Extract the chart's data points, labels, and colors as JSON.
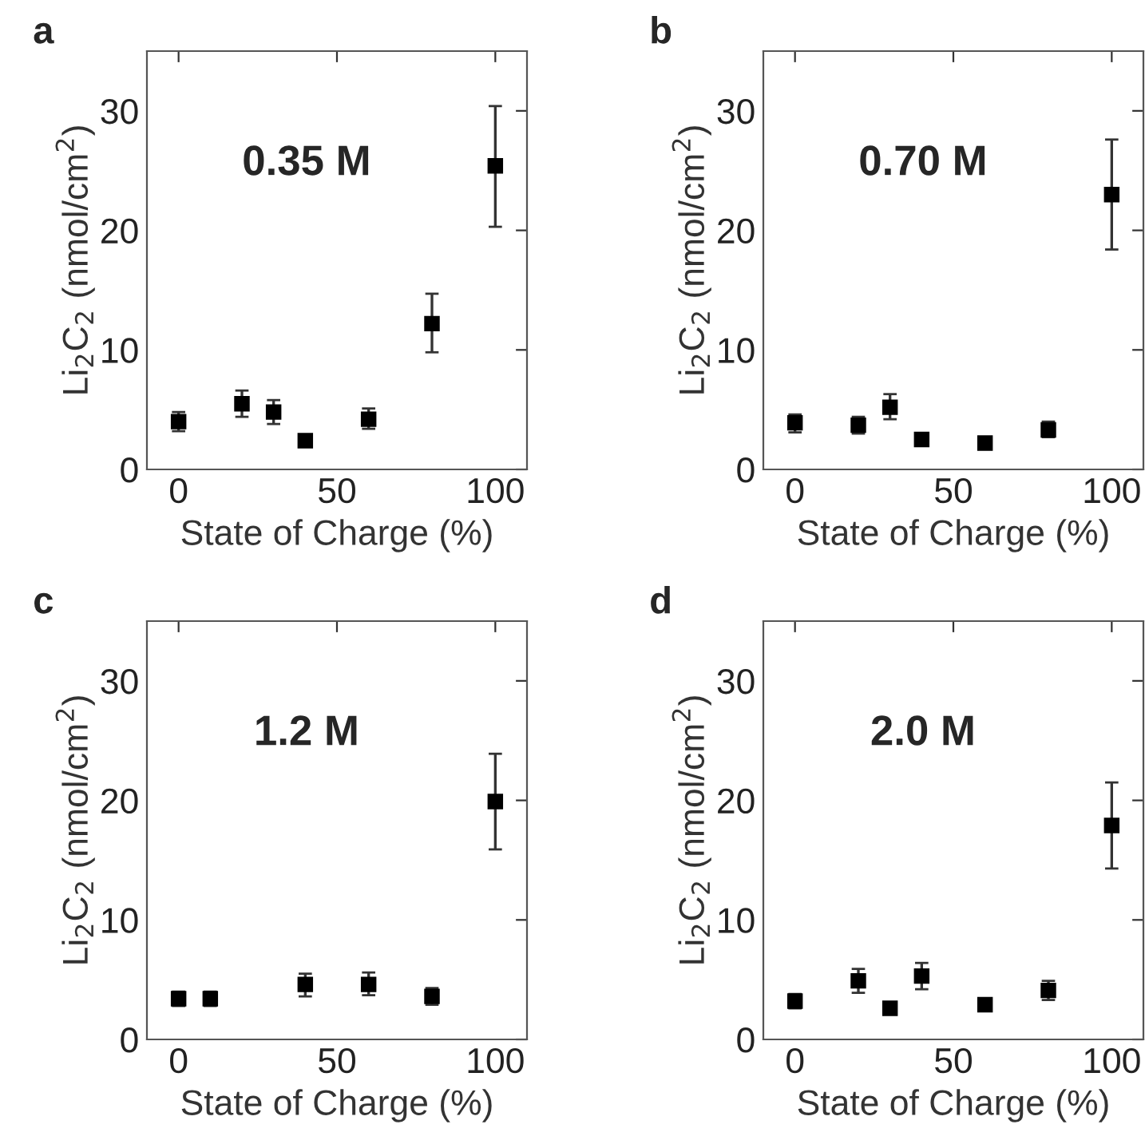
{
  "chart_data": [
    {
      "type": "scatter",
      "title": "a",
      "xlabel": "State of Charge (%)",
      "ylabel": "Li$_{2}$C$_{2}$ (nmol/cm$^{2}$)",
      "annotations": [
        "0.35 M"
      ],
      "x": [
        0,
        20,
        30,
        40,
        60,
        80,
        100
      ],
      "values": [
        4.0,
        5.5,
        4.8,
        2.4,
        4.2,
        12.2,
        25.4
      ],
      "errors": [
        [
          3.2,
          4.8
        ],
        [
          4.4,
          6.6
        ],
        [
          3.8,
          5.8
        ],
        null,
        [
          3.4,
          5.1
        ],
        [
          9.8,
          14.7
        ],
        [
          20.3,
          30.4
        ]
      ],
      "color": "#000000",
      "marker": "square",
      "xlim": [
        -10,
        110
      ],
      "ylim": [
        0,
        35
      ],
      "xticks": [
        0,
        50,
        100
      ],
      "yticks": [
        0,
        10,
        20,
        30
      ],
      "grid": false,
      "legend": false
    },
    {
      "type": "scatter",
      "title": "b",
      "xlabel": "State of Charge (%)",
      "ylabel": "Li$_{2}$C$_{2}$ (nmol/cm$^{2}$)",
      "annotations": [
        "0.70 M"
      ],
      "x": [
        0,
        20,
        30,
        40,
        60,
        80,
        100
      ],
      "values": [
        3.9,
        3.7,
        5.2,
        2.5,
        2.2,
        3.3,
        23.0
      ],
      "errors": [
        [
          3.1,
          4.6
        ],
        [
          3.0,
          4.4
        ],
        [
          4.2,
          6.3
        ],
        null,
        null,
        [
          2.7,
          4.0
        ],
        [
          18.4,
          27.6
        ]
      ],
      "color": "#000000",
      "marker": "square",
      "xlim": [
        -10,
        110
      ],
      "ylim": [
        0,
        35
      ],
      "xticks": [
        0,
        50,
        100
      ],
      "yticks": [
        0,
        10,
        20,
        30
      ],
      "grid": false,
      "legend": false
    },
    {
      "type": "scatter",
      "title": "c",
      "xlabel": "State of Charge (%)",
      "ylabel": "Li$_{2}$C$_{2}$ (nmol/cm$^{2}$)",
      "annotations": [
        "1.2 M"
      ],
      "x": [
        0,
        10,
        40,
        60,
        80,
        100
      ],
      "values": [
        3.4,
        3.4,
        4.6,
        4.6,
        3.6,
        19.9
      ],
      "errors": [
        [
          2.8,
          4.0
        ],
        [
          2.8,
          4.0
        ],
        [
          3.6,
          5.5
        ],
        [
          3.7,
          5.6
        ],
        [
          2.9,
          4.3
        ],
        [
          15.9,
          23.9
        ]
      ],
      "color": "#000000",
      "marker": "square",
      "xlim": [
        -10,
        110
      ],
      "ylim": [
        0,
        35
      ],
      "xticks": [
        0,
        50,
        100
      ],
      "yticks": [
        0,
        10,
        20,
        30
      ],
      "grid": false,
      "legend": false
    },
    {
      "type": "scatter",
      "title": "d",
      "xlabel": "State of Charge (%)",
      "ylabel": "Li$_{2}$C$_{2}$ (nmol/cm$^{2}$)",
      "annotations": [
        "2.0 M"
      ],
      "x": [
        0,
        20,
        30,
        40,
        60,
        80,
        100
      ],
      "values": [
        3.2,
        4.9,
        2.6,
        5.3,
        2.9,
        4.1,
        17.9
      ],
      "errors": [
        [
          2.6,
          3.8
        ],
        [
          3.9,
          5.9
        ],
        null,
        [
          4.2,
          6.4
        ],
        null,
        [
          3.3,
          4.9
        ],
        [
          14.3,
          21.5
        ]
      ],
      "color": "#000000",
      "marker": "square",
      "xlim": [
        -10,
        110
      ],
      "ylim": [
        0,
        35
      ],
      "xticks": [
        0,
        50,
        100
      ],
      "yticks": [
        0,
        10,
        20,
        30
      ],
      "grid": false,
      "legend": false
    }
  ]
}
